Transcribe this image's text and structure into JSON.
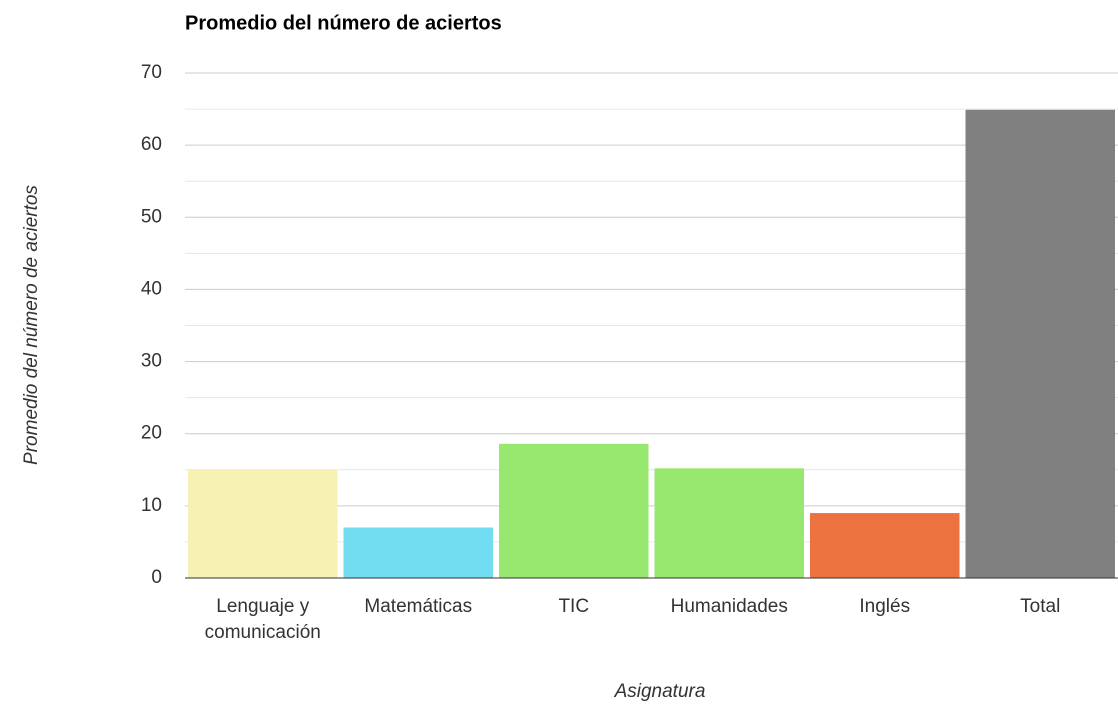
{
  "chart_data": {
    "type": "bar",
    "title": "Promedio del número de aciertos",
    "x_label": "Asignatura",
    "y_label": "Promedio del número de aciertos",
    "categories": [
      "Lenguaje y comunicación",
      "Matemáticas",
      "TIC",
      "Humanidades",
      "Inglés",
      "Total"
    ],
    "values": [
      15,
      7,
      18.6,
      15.2,
      9,
      64.9
    ],
    "colors": [
      "#f5f1b3",
      "#72dcf1",
      "#98e76f",
      "#98e76f",
      "#ec7340",
      "#808080"
    ],
    "ylim": [
      0,
      70
    ],
    "yticks": [
      0,
      10,
      20,
      30,
      40,
      50,
      60,
      70
    ],
    "minor_yticks": [
      5,
      15,
      25,
      35,
      45,
      55,
      65
    ],
    "grid": true
  }
}
